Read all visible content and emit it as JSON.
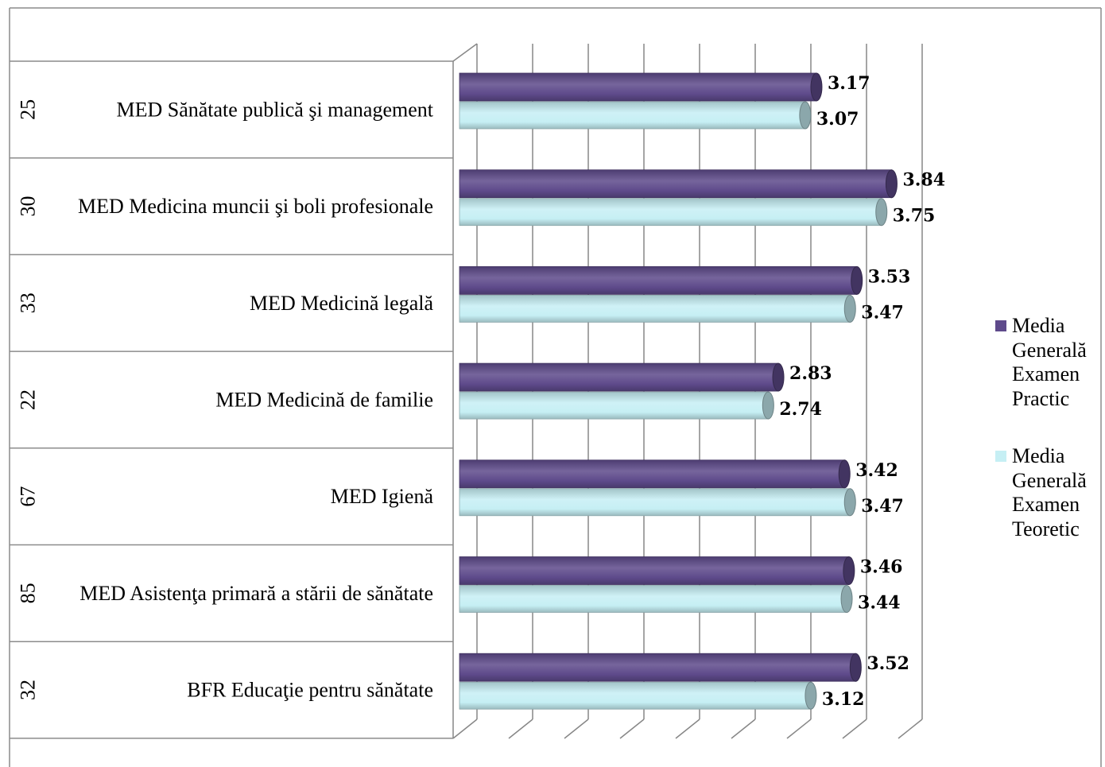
{
  "chart_data": {
    "type": "bar",
    "orientation": "horizontal",
    "style": "3d-cylinder",
    "categories": [
      "MED Sănătate publică şi management",
      "MED Medicina muncii şi boli profesionale",
      "MED Medicină legală",
      "MED Medicină de familie",
      "MED Igienă",
      "MED Asistenţa primară a stării de sănătate",
      "BFR Educaţie pentru sănătate"
    ],
    "category_groups": [
      "25",
      "30",
      "33",
      "22",
      "67",
      "85",
      "32"
    ],
    "series": [
      {
        "name": "Media Generală Examen Practic",
        "color": "#5e4a8b",
        "values": [
          3.17,
          3.84,
          3.53,
          2.83,
          3.42,
          3.46,
          3.52
        ]
      },
      {
        "name": "Media Generală Examen Teoretic",
        "color": "#c6eff4",
        "values": [
          3.07,
          3.75,
          3.47,
          2.74,
          3.47,
          3.44,
          3.12
        ]
      }
    ],
    "xlim": [
      0,
      4
    ],
    "x_major_unit": 0.5,
    "grid": true,
    "data_labels": true,
    "legend": "right"
  }
}
